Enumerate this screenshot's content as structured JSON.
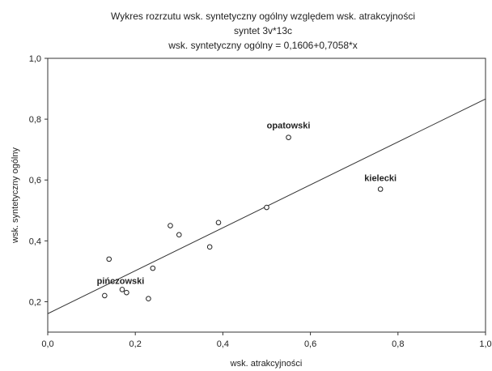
{
  "chart_data": {
    "type": "scatter",
    "title": [
      "Wykres rozrzutu   wsk. syntetyczny ogólny względem wsk. atrakcyjności",
      "syntet 3v*13c",
      "wsk. syntetyczny ogólny = 0,1606+0,7058*x"
    ],
    "xlabel": "wsk. atrakcyjności",
    "ylabel": "wsk. syntetyczny ogólny",
    "xlim": [
      0,
      1
    ],
    "ylim": [
      0.1,
      1.0
    ],
    "xticks": [
      0,
      0.2,
      0.4,
      0.6,
      0.8,
      1.0
    ],
    "xtick_labels": [
      "0,0",
      "0,2",
      "0,4",
      "0,6",
      "0,8",
      "1,0"
    ],
    "yticks": [
      0.2,
      0.4,
      0.6,
      0.8,
      1.0
    ],
    "ytick_labels": [
      "0,2",
      "0,4",
      "0,6",
      "0,8",
      "1,0"
    ],
    "grid": false,
    "points": [
      {
        "x": 0.13,
        "y": 0.22,
        "label": ""
      },
      {
        "x": 0.14,
        "y": 0.34,
        "label": ""
      },
      {
        "x": 0.17,
        "y": 0.24,
        "label": "pińczowski"
      },
      {
        "x": 0.18,
        "y": 0.23,
        "label": ""
      },
      {
        "x": 0.23,
        "y": 0.21,
        "label": ""
      },
      {
        "x": 0.24,
        "y": 0.31,
        "label": ""
      },
      {
        "x": 0.28,
        "y": 0.45,
        "label": ""
      },
      {
        "x": 0.3,
        "y": 0.42,
        "label": ""
      },
      {
        "x": 0.37,
        "y": 0.38,
        "label": ""
      },
      {
        "x": 0.39,
        "y": 0.46,
        "label": ""
      },
      {
        "x": 0.5,
        "y": 0.51,
        "label": ""
      },
      {
        "x": 0.55,
        "y": 0.74,
        "label": "opatowski"
      },
      {
        "x": 0.76,
        "y": 0.57,
        "label": "kielecki"
      }
    ],
    "regression": {
      "intercept": 0.1606,
      "slope": 0.7058
    }
  }
}
